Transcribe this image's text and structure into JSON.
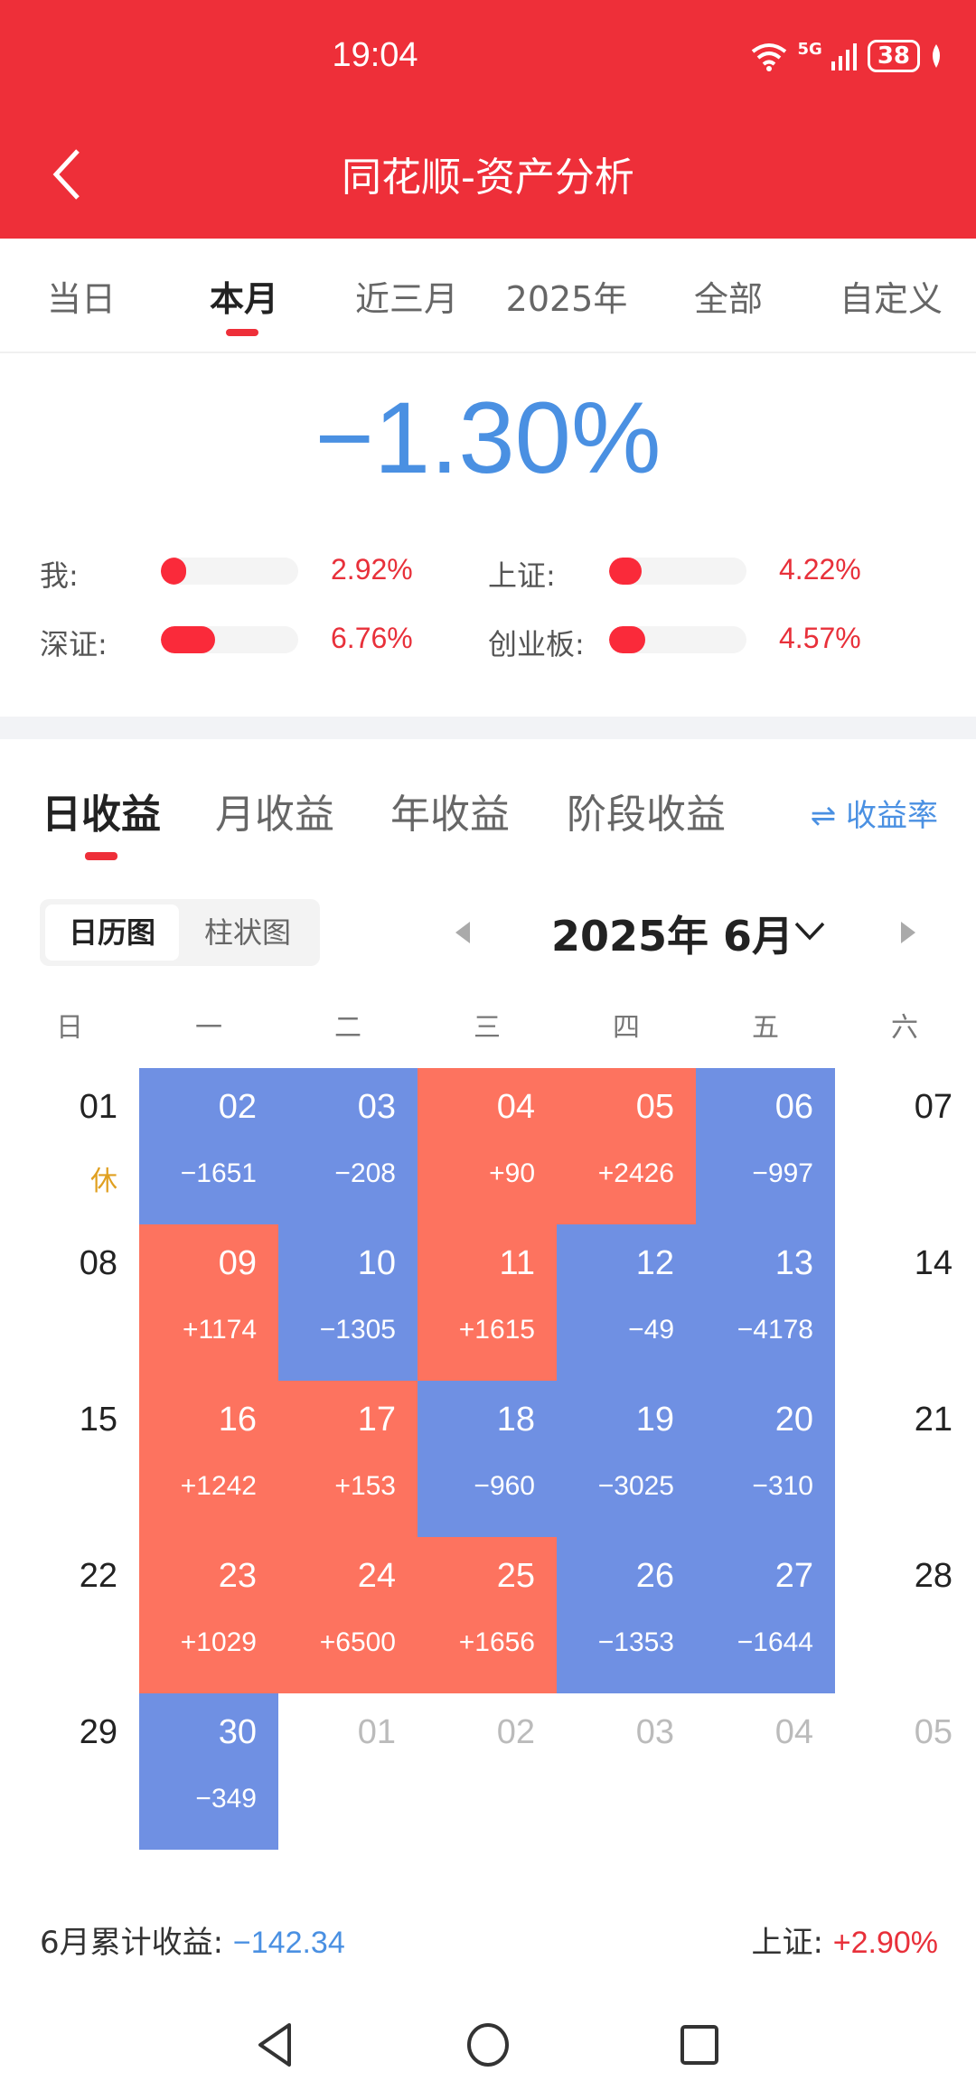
{
  "status_bar": {
    "time": "19:04",
    "wifi": "wifi-6-icon",
    "network": "5G",
    "battery": "38"
  },
  "header": {
    "title": "同花顺-资产分析",
    "back_icon": "chevron-left-icon"
  },
  "period_tabs": [
    {
      "label": "当日",
      "active": false
    },
    {
      "label": "本月",
      "active": true
    },
    {
      "label": "近三月",
      "active": false
    },
    {
      "label": "2025年",
      "active": false
    },
    {
      "label": "全部",
      "active": false
    },
    {
      "label": "自定义",
      "active": false
    }
  ],
  "overview": {
    "return_pct": "−1.30%",
    "comparisons": [
      {
        "label": "我:",
        "value": "2.92%",
        "fill_pct": 18
      },
      {
        "label": "上证:",
        "value": "4.22%",
        "fill_pct": 24
      },
      {
        "label": "深证:",
        "value": "6.76%",
        "fill_pct": 40
      },
      {
        "label": "创业板:",
        "value": "4.57%",
        "fill_pct": 26
      }
    ]
  },
  "section_tabs": [
    {
      "label": "日收益",
      "active": true
    },
    {
      "label": "月收益",
      "active": false
    },
    {
      "label": "年收益",
      "active": false
    },
    {
      "label": "阶段收益",
      "active": false
    }
  ],
  "rate_toggle": {
    "icon": "swap-icon",
    "label": "收益率"
  },
  "view_toggle": {
    "calendar": "日历图",
    "bar": "柱状图",
    "active": "calendar"
  },
  "month_nav": {
    "label": "2025年 6月",
    "prev_icon": "triangle-left-icon",
    "next_icon": "triangle-right-icon",
    "dropdown_icon": "chevron-down-icon"
  },
  "weekdays": [
    "日",
    "一",
    "二",
    "三",
    "四",
    "五",
    "六"
  ],
  "calendar": {
    "colors": {
      "positive": "#fd735f",
      "negative": "#6f90e3"
    },
    "weeks": [
      [
        {
          "day": "01",
          "note": "休",
          "type": "plain"
        },
        {
          "day": "02",
          "amount": "−1651",
          "type": "neg"
        },
        {
          "day": "03",
          "amount": "−208",
          "type": "neg"
        },
        {
          "day": "04",
          "amount": "+90",
          "type": "pos"
        },
        {
          "day": "05",
          "amount": "+2426",
          "type": "pos"
        },
        {
          "day": "06",
          "amount": "−997",
          "type": "neg"
        },
        {
          "day": "07",
          "type": "plain"
        }
      ],
      [
        {
          "day": "08",
          "type": "plain"
        },
        {
          "day": "09",
          "amount": "+1174",
          "type": "pos"
        },
        {
          "day": "10",
          "amount": "−1305",
          "type": "neg"
        },
        {
          "day": "11",
          "amount": "+1615",
          "type": "pos"
        },
        {
          "day": "12",
          "amount": "−49",
          "type": "neg"
        },
        {
          "day": "13",
          "amount": "−4178",
          "type": "neg"
        },
        {
          "day": "14",
          "type": "plain"
        }
      ],
      [
        {
          "day": "15",
          "type": "plain"
        },
        {
          "day": "16",
          "amount": "+1242",
          "type": "pos"
        },
        {
          "day": "17",
          "amount": "+153",
          "type": "pos"
        },
        {
          "day": "18",
          "amount": "−960",
          "type": "neg"
        },
        {
          "day": "19",
          "amount": "−3025",
          "type": "neg"
        },
        {
          "day": "20",
          "amount": "−310",
          "type": "neg"
        },
        {
          "day": "21",
          "type": "plain"
        }
      ],
      [
        {
          "day": "22",
          "type": "plain"
        },
        {
          "day": "23",
          "amount": "+1029",
          "type": "pos"
        },
        {
          "day": "24",
          "amount": "+6500",
          "type": "pos"
        },
        {
          "day": "25",
          "amount": "+1656",
          "type": "pos"
        },
        {
          "day": "26",
          "amount": "−1353",
          "type": "neg"
        },
        {
          "day": "27",
          "amount": "−1644",
          "type": "neg"
        },
        {
          "day": "28",
          "type": "plain"
        }
      ],
      [
        {
          "day": "29",
          "type": "plain"
        },
        {
          "day": "30",
          "amount": "−349",
          "type": "neg"
        },
        {
          "day": "01",
          "type": "muted"
        },
        {
          "day": "02",
          "type": "muted"
        },
        {
          "day": "03",
          "type": "muted"
        },
        {
          "day": "04",
          "type": "muted"
        },
        {
          "day": "05",
          "type": "muted"
        }
      ]
    ]
  },
  "summary": {
    "month_label": "6月累计收益:",
    "month_value": "−142.34",
    "index_label": "上证:",
    "index_value": "+2.90%"
  },
  "nav_bar": {
    "back": "nav-back-icon",
    "home": "nav-home-icon",
    "recents": "nav-recents-icon"
  }
}
